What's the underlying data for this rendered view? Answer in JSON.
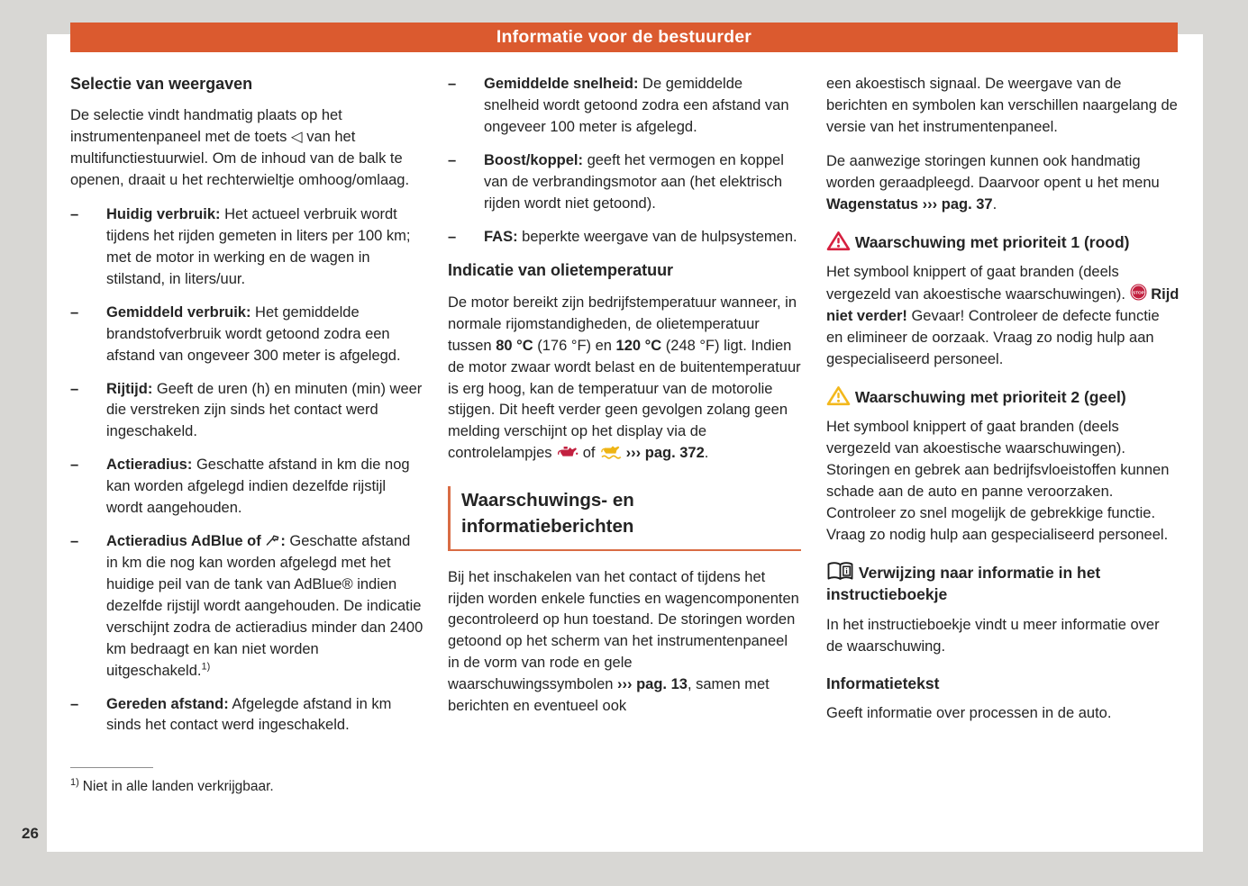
{
  "page": {
    "number": "26"
  },
  "header": {
    "title": "Informatie voor de bestuurder"
  },
  "colors": {
    "accent_orange": "#db5a2f",
    "heading_rule_orange": "#d96c44",
    "warning_red": "#d6203f",
    "warning_yellow": "#f3b81c",
    "stop_red": "#c2203f",
    "oil_red": "#c2203f",
    "oil_yellow": "#eeb414",
    "canvas_gray": "#d8d7d4",
    "text": "#242424"
  },
  "lists": {
    "marker": "–"
  },
  "icon_defs": {
    "view-button-icon": {
      "glyph": "◁"
    },
    "stop-icon": {
      "label": "STOP"
    }
  },
  "col1": {
    "heading": "Selectie van weergaven",
    "intro": [
      {
        "t": "De selectie vindt handmatig plaats op het instrumentenpaneel met de toets "
      },
      {
        "icon": "view-button-icon"
      },
      {
        "t": " van het multifunctiestuurwiel. Om de inhoud van de balk te openen, draait u het rechterwieltje omhoog/omlaag."
      }
    ],
    "items": [
      [
        {
          "t": "Huidig verbruik:",
          "b": true
        },
        {
          "t": " Het actueel verbruik wordt tijdens het rijden gemeten in liters per 100 km; met de motor in werking en de wagen in stilstand, in liters/uur."
        }
      ],
      [
        {
          "t": "Gemiddeld verbruik:",
          "b": true
        },
        {
          "t": " Het gemiddelde brandstofverbruik wordt getoond zodra een afstand van ongeveer 300 meter is afgelegd."
        }
      ],
      [
        {
          "t": "Rijtijd:",
          "b": true
        },
        {
          "t": " Geeft de uren (h) en minuten (min) weer die verstreken zijn sinds het contact werd ingeschakeld."
        }
      ],
      [
        {
          "t": "Actieradius:",
          "b": true
        },
        {
          "t": " Geschatte afstand in km die nog kan worden afgelegd indien dezelfde rijstijl wordt aangehouden."
        }
      ],
      [
        {
          "t": "Actieradius AdBlue of ",
          "b": true
        },
        {
          "icon": "adblue-nozzle-icon"
        },
        {
          "t": ":",
          "b": true
        },
        {
          "t": " Geschatte afstand in km die nog kan worden afgelegd met het huidige peil van de tank van AdBlue® indien dezelfde rijstijl wordt aangehouden. De indicatie verschijnt zodra de actieradius minder dan 2400 km bedraagt en kan niet worden uitgeschakeld."
        },
        {
          "t": "1)",
          "sup": true
        }
      ],
      [
        {
          "t": "Gereden afstand:",
          "b": true
        },
        {
          "t": " Afgelegde afstand in km sinds het contact werd ingeschakeld."
        }
      ]
    ],
    "footnote": {
      "ref": "1)",
      "text": "Niet in alle landen verkrijgbaar."
    }
  },
  "col2": {
    "items": [
      [
        {
          "t": "Gemiddelde snelheid:",
          "b": true
        },
        {
          "t": " De gemiddelde snelheid wordt getoond zodra een afstand van ongeveer 100 meter is afgelegd."
        }
      ],
      [
        {
          "t": "Boost/koppel:",
          "b": true
        },
        {
          "t": " geeft het vermogen en koppel van de verbrandingsmotor aan (het elektrisch rijden wordt niet getoond)."
        }
      ],
      [
        {
          "t": "FAS:",
          "b": true
        },
        {
          "t": " beperkte weergave van de hulpsystemen."
        }
      ]
    ],
    "oil_heading": "Indicatie van olietemperatuur",
    "oil_para": [
      {
        "t": "De motor bereikt zijn bedrijfstemperatuur wanneer, in normale rijomstandigheden, de olietemperatuur tussen "
      },
      {
        "t": "80 °C",
        "b": true
      },
      {
        "t": " (176 °F) en "
      },
      {
        "t": "120 °C",
        "b": true
      },
      {
        "t": " (248 °F) ligt. Indien de motor zwaar wordt belast en de buitentemperatuur is erg hoog, kan de temperatuur van de motorolie stijgen. Dit heeft verder geen gevolgen zolang geen melding verschijnt op het display via de controlelampjes "
      },
      {
        "icon": "oil-pressure-icon"
      },
      {
        "t": " of "
      },
      {
        "icon": "oil-level-icon"
      },
      {
        "t": " "
      },
      {
        "t": "››› pag. 372",
        "b": true
      },
      {
        "t": "."
      }
    ],
    "section_heading": "Waarschuwings- en informatieberichten",
    "section_para": [
      {
        "t": "Bij het inschakelen van het contact of tijdens het rijden worden enkele functies en wagencomponenten gecontroleerd op hun toestand. De storingen worden getoond op het scherm van het instrumentenpaneel in de vorm van rode en gele waarschuwingssymbolen "
      },
      {
        "t": "››› pag. 13",
        "b": true
      },
      {
        "t": ", samen met berichten en eventueel ook"
      }
    ]
  },
  "col3": {
    "para1": "een akoestisch signaal. De weergave van de berichten en symbolen kan verschillen naargelang de versie van het instrumentenpaneel.",
    "para2": [
      {
        "t": "De aanwezige storingen kunnen ook handmatig worden geraadpleegd. Daarvoor opent u het menu "
      },
      {
        "t": "Wagenstatus",
        "b": true
      },
      {
        "t": " "
      },
      {
        "t": "››› pag. 37",
        "b": true
      },
      {
        "t": "."
      }
    ],
    "w1_heading": [
      {
        "icon": "warning-triangle-red-icon"
      },
      {
        "t": " Waarschuwing met prioriteit 1 (rood)",
        "b": true
      }
    ],
    "w1_para": [
      {
        "t": "Het symbool knippert of gaat branden (deels vergezeld van akoestische waarschuwingen). "
      },
      {
        "icon": "stop-icon"
      },
      {
        "t": " "
      },
      {
        "t": "Rijd niet verder!",
        "b": true
      },
      {
        "t": " Gevaar! Controleer de defecte functie en elimineer de oorzaak. Vraag zo nodig hulp aan gespecialiseerd personeel."
      }
    ],
    "w2_heading": [
      {
        "icon": "warning-triangle-yellow-icon"
      },
      {
        "t": " Waarschuwing met prioriteit 2 (geel)",
        "b": true
      }
    ],
    "w2_para": "Het symbool knippert of gaat branden (deels vergezeld van akoestische waarschuwingen). Storingen en gebrek aan bedrijfsvloeistoffen kunnen schade aan de auto en panne veroorzaken. Controleer zo snel mogelijk de gebrekkige functie. Vraag zo nodig hulp aan gespecialiseerd personeel.",
    "book_heading": [
      {
        "icon": "handbook-icon"
      },
      {
        "t": " Verwijzing naar informatie in het instructieboekje",
        "b": true
      }
    ],
    "book_para": "In het instructieboekje vindt u meer informatie over de waarschuwing.",
    "info_heading": "Informatietekst",
    "info_para": "Geeft informatie over processen in de auto."
  }
}
